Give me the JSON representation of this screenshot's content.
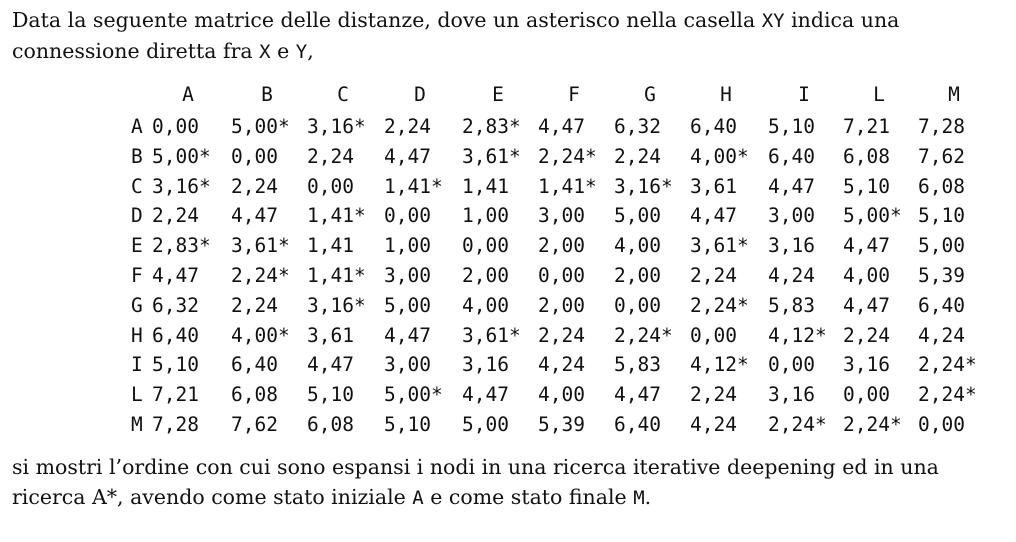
{
  "intro": {
    "line1_a": "Data la seguente matrice delle distanze, dove un asterisco nella casella ",
    "line1_code": "XY",
    "line1_b": " indica una",
    "line2_a": "connessione diretta fra ",
    "line2_x": "X",
    "line2_b": " e ",
    "line2_y": "Y",
    "line2_c": ","
  },
  "matrix": {
    "columns": [
      "A",
      "B",
      "C",
      "D",
      "E",
      "F",
      "G",
      "H",
      "I",
      "L",
      "M"
    ],
    "rows": [
      {
        "label": "A",
        "cells": [
          "0,00",
          "5,00*",
          "3,16*",
          "2,24",
          "2,83*",
          "4,47",
          "6,32",
          "6,40",
          "5,10",
          "7,21",
          "7,28"
        ]
      },
      {
        "label": "B",
        "cells": [
          "5,00*",
          "0,00",
          "2,24",
          "4,47",
          "3,61*",
          "2,24*",
          "2,24",
          "4,00*",
          "6,40",
          "6,08",
          "7,62"
        ]
      },
      {
        "label": "C",
        "cells": [
          "3,16*",
          "2,24",
          "0,00",
          "1,41*",
          "1,41",
          "1,41*",
          "3,16*",
          "3,61",
          "4,47",
          "5,10",
          "6,08"
        ]
      },
      {
        "label": "D",
        "cells": [
          "2,24",
          "4,47",
          "1,41*",
          "0,00",
          "1,00",
          "3,00",
          "5,00",
          "4,47",
          "3,00",
          "5,00*",
          "5,10"
        ]
      },
      {
        "label": "E",
        "cells": [
          "2,83*",
          "3,61*",
          "1,41",
          "1,00",
          "0,00",
          "2,00",
          "4,00",
          "3,61*",
          "3,16",
          "4,47",
          "5,00"
        ]
      },
      {
        "label": "F",
        "cells": [
          "4,47",
          "2,24*",
          "1,41*",
          "3,00",
          "2,00",
          "0,00",
          "2,00",
          "2,24",
          "4,24",
          "4,00",
          "5,39"
        ]
      },
      {
        "label": "G",
        "cells": [
          "6,32",
          "2,24",
          "3,16*",
          "5,00",
          "4,00",
          "2,00",
          "0,00",
          "2,24*",
          "5,83",
          "4,47",
          "6,40"
        ]
      },
      {
        "label": "H",
        "cells": [
          "6,40",
          "4,00*",
          "3,61",
          "4,47",
          "3,61*",
          "2,24",
          "2,24*",
          "0,00",
          "4,12*",
          "2,24",
          "4,24"
        ]
      },
      {
        "label": "I",
        "cells": [
          "5,10",
          "6,40",
          "4,47",
          "3,00",
          "3,16",
          "4,24",
          "5,83",
          "4,12*",
          "0,00",
          "3,16",
          "2,24*"
        ]
      },
      {
        "label": "L",
        "cells": [
          "7,21",
          "6,08",
          "5,10",
          "5,00*",
          "4,47",
          "4,00",
          "4,47",
          "2,24",
          "3,16",
          "0,00",
          "2,24*"
        ]
      },
      {
        "label": "M",
        "cells": [
          "7,28",
          "7,62",
          "6,08",
          "5,10",
          "5,00",
          "5,39",
          "6,40",
          "4,24",
          "2,24*",
          "2,24*",
          "0,00"
        ]
      }
    ]
  },
  "outro": {
    "line1": "si mostri l’ordine con cui sono espansi i nodi in una ricerca iterative deepening ed in una",
    "line2_a": "ricerca A*, avendo come stato iniziale ",
    "line2_start": "A",
    "line2_b": " e come stato finale ",
    "line2_goal": "M",
    "line2_c": "."
  }
}
